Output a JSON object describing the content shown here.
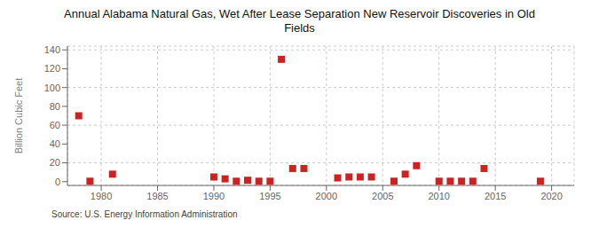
{
  "chart_data": {
    "type": "scatter",
    "title": "Annual Alabama Natural Gas, Wet After Lease Separation New Reservoir Discoveries in Old\nFields",
    "ylabel": "Billion Cubic Feet",
    "source": "Source: U.S. Energy Information Administration",
    "x": [
      1978,
      1979,
      1981,
      1990,
      1991,
      1992,
      1993,
      1994,
      1995,
      1996,
      1997,
      1998,
      2001,
      2002,
      2003,
      2004,
      2006,
      2007,
      2008,
      2010,
      2011,
      2012,
      2013,
      2014,
      2019
    ],
    "values": [
      70.0,
      0.5,
      8.0,
      5.0,
      3.0,
      0.5,
      1.5,
      0.5,
      0.5,
      130.0,
      14.0,
      14.0,
      4.0,
      5.0,
      5.0,
      5.0,
      0.5,
      8.0,
      17.0,
      0.5,
      0.5,
      0.5,
      0.5,
      14.0,
      0.5
    ],
    "color": "#cc2222",
    "marker": "square",
    "xlim": [
      1977,
      2022
    ],
    "ylim": [
      -4,
      144
    ],
    "xticks": [
      1980,
      1985,
      1990,
      1995,
      2000,
      2005,
      2010,
      2015,
      2020
    ],
    "yticks": [
      0,
      20,
      40,
      60,
      80,
      100,
      120,
      140
    ],
    "grid": true
  }
}
